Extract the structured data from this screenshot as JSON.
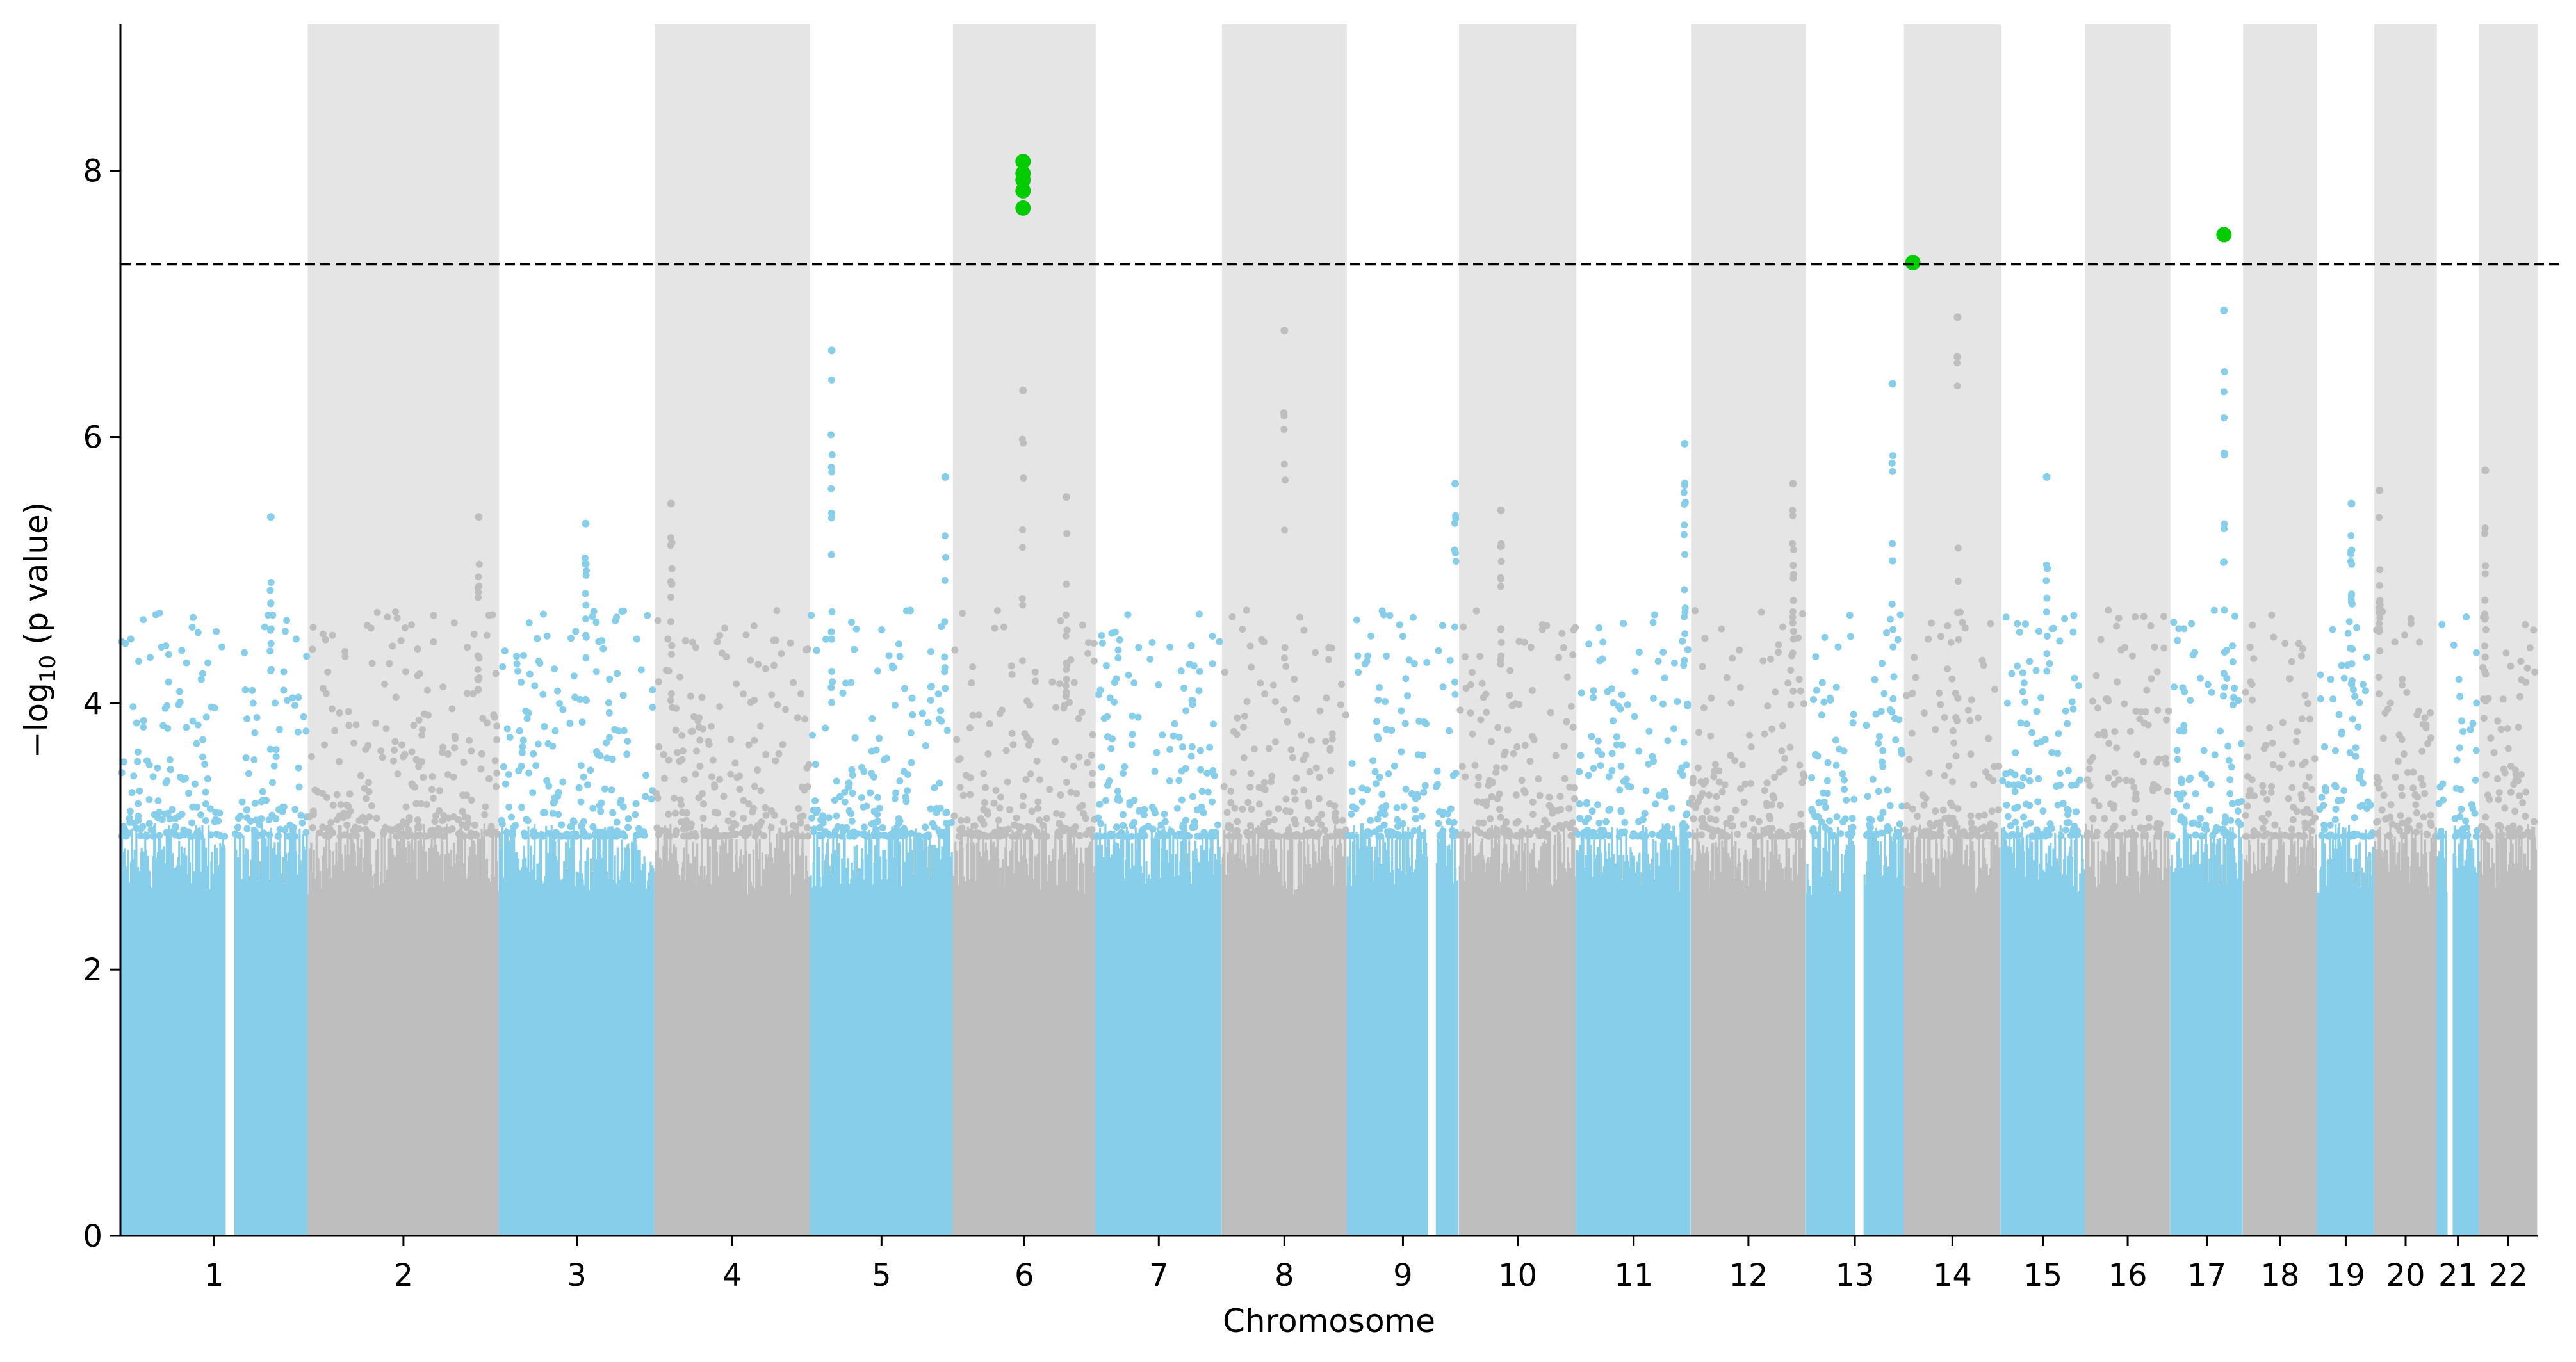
{
  "chart_data": {
    "type": "scatter",
    "subtype": "manhattan",
    "xlabel": "Chromosome",
    "ylabel": "−log₁₀ (p value)",
    "ylabel_parts": {
      "pre": "−log",
      "sub": "10",
      "post": " (p value)"
    },
    "ylim": [
      0,
      9.1
    ],
    "yticks": [
      0,
      2,
      4,
      6,
      8
    ],
    "significance_threshold": 7.3,
    "colors": {
      "odd": "#87ceeb",
      "even": "#bebebe",
      "band": "#e5e5e5",
      "significant": "#00cc00",
      "threshold_line": "#000000"
    },
    "chromosomes": [
      {
        "label": "1",
        "start": 0,
        "end": 147
      },
      {
        "label": "2",
        "start": 147,
        "end": 297
      },
      {
        "label": "3",
        "start": 297,
        "end": 419
      },
      {
        "label": "4",
        "start": 419,
        "end": 541
      },
      {
        "label": "5",
        "start": 541,
        "end": 653
      },
      {
        "label": "6",
        "start": 653,
        "end": 765
      },
      {
        "label": "7",
        "start": 765,
        "end": 864
      },
      {
        "label": "8",
        "start": 864,
        "end": 962
      },
      {
        "label": "9",
        "start": 962,
        "end": 1050
      },
      {
        "label": "10",
        "start": 1050,
        "end": 1142
      },
      {
        "label": "11",
        "start": 1142,
        "end": 1232
      },
      {
        "label": "12",
        "start": 1232,
        "end": 1322
      },
      {
        "label": "13",
        "start": 1322,
        "end": 1399
      },
      {
        "label": "14",
        "start": 1399,
        "end": 1475
      },
      {
        "label": "15",
        "start": 1475,
        "end": 1541
      },
      {
        "label": "16",
        "start": 1541,
        "end": 1608
      },
      {
        "label": "17",
        "start": 1608,
        "end": 1665
      },
      {
        "label": "18",
        "start": 1665,
        "end": 1723
      },
      {
        "label": "19",
        "start": 1723,
        "end": 1768
      },
      {
        "label": "20",
        "start": 1768,
        "end": 1817
      },
      {
        "label": "21",
        "start": 1817,
        "end": 1850
      },
      {
        "label": "22",
        "start": 1850,
        "end": 1896
      }
    ],
    "gaps": [
      [
        82,
        90
      ],
      [
        1025,
        1032
      ],
      [
        1360,
        1368
      ],
      [
        1825,
        1830
      ]
    ],
    "peaks": [
      {
        "chrom": "1",
        "x": 118,
        "y": 5.4
      },
      {
        "chrom": "2",
        "x": 281,
        "y": 5.4
      },
      {
        "chrom": "3",
        "x": 365,
        "y": 5.35
      },
      {
        "chrom": "4",
        "x": 432,
        "y": 5.5
      },
      {
        "chrom": "5",
        "x": 558,
        "y": 6.65
      },
      {
        "chrom": "5",
        "x": 647,
        "y": 5.7
      },
      {
        "chrom": "6",
        "x": 708,
        "y": 6.35
      },
      {
        "chrom": "6",
        "x": 742,
        "y": 5.55
      },
      {
        "chrom": "8",
        "x": 913,
        "y": 6.8
      },
      {
        "chrom": "9",
        "x": 1047,
        "y": 5.65
      },
      {
        "chrom": "10",
        "x": 1083,
        "y": 5.45
      },
      {
        "chrom": "11",
        "x": 1227,
        "y": 5.95
      },
      {
        "chrom": "12",
        "x": 1312,
        "y": 5.65
      },
      {
        "chrom": "13",
        "x": 1390,
        "y": 6.4
      },
      {
        "chrom": "14",
        "x": 1441,
        "y": 6.9
      },
      {
        "chrom": "15",
        "x": 1511,
        "y": 5.7
      },
      {
        "chrom": "17",
        "x": 1650,
        "y": 6.95
      },
      {
        "chrom": "19",
        "x": 1750,
        "y": 5.5
      },
      {
        "chrom": "20",
        "x": 1772,
        "y": 5.6
      },
      {
        "chrom": "22",
        "x": 1855,
        "y": 5.75
      }
    ],
    "significant_points": [
      {
        "chrom": "6",
        "x": 708,
        "y": 8.07
      },
      {
        "chrom": "6",
        "x": 708,
        "y": 7.98
      },
      {
        "chrom": "6",
        "x": 708,
        "y": 7.93
      },
      {
        "chrom": "6",
        "x": 708,
        "y": 7.85
      },
      {
        "chrom": "6",
        "x": 708,
        "y": 7.72
      },
      {
        "chrom": "14",
        "x": 1406,
        "y": 7.31
      },
      {
        "chrom": "17",
        "x": 1650,
        "y": 7.52
      }
    ]
  }
}
